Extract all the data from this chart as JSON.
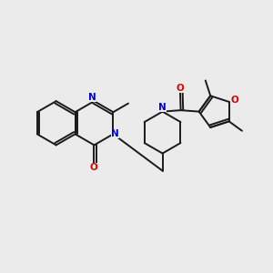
{
  "bg": "#ebebeb",
  "bc": "#1a1a1a",
  "nc": "#0000dd",
  "oc": "#dd0000",
  "lw": 1.4,
  "fs": 7.0,
  "dbo": 0.09,
  "figsize": [
    3.0,
    3.0
  ],
  "dpi": 100,
  "xlim": [
    0,
    10
  ],
  "ylim": [
    0,
    10
  ]
}
